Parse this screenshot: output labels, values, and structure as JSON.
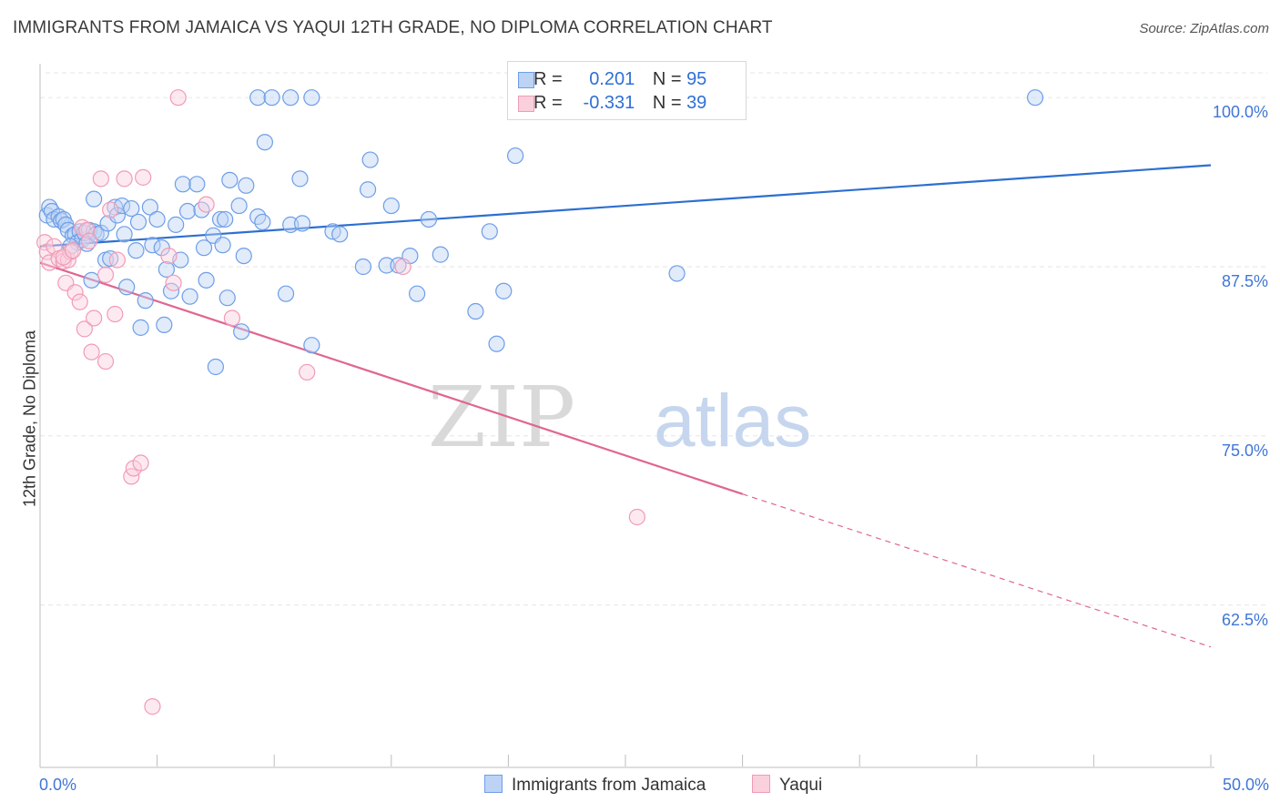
{
  "title": "IMMIGRANTS FROM JAMAICA VS YAQUI 12TH GRADE, NO DIPLOMA CORRELATION CHART",
  "source": "Source: ZipAtlas.com",
  "watermark": {
    "zip": "ZIP",
    "atlas": "atlas"
  },
  "legend": {
    "rows": [
      {
        "r_label": "R =",
        "r_value": "0.201",
        "n_label": "N =",
        "n_value": "95",
        "color": "#6d9ee8",
        "fill": "#bcd3f5"
      },
      {
        "r_label": "R =",
        "r_value": "-0.331",
        "n_label": "N =",
        "n_value": "39",
        "color": "#f19bb6",
        "fill": "#fbd0dd"
      }
    ]
  },
  "bottom_legend": {
    "items": [
      {
        "label": "Immigrants from Jamaica",
        "color": "#6d9ee8",
        "fill": "#bcd3f5"
      },
      {
        "label": "Yaqui",
        "color": "#f19bb6",
        "fill": "#fbd0dd"
      }
    ]
  },
  "axis": {
    "ylabel": "12th Grade, No Diploma",
    "x_min_label": "0.0%",
    "x_max_label": "50.0%",
    "y_ticks": [
      {
        "value": 100.0,
        "label": "100.0%"
      },
      {
        "value": 87.5,
        "label": "87.5%"
      },
      {
        "value": 75.0,
        "label": "75.0%"
      },
      {
        "value": 62.5,
        "label": "62.5%"
      }
    ]
  },
  "chart_data": {
    "type": "scatter",
    "x_range": [
      0,
      50
    ],
    "y_range": [
      50.5,
      102.5
    ],
    "grid": true,
    "series": [
      {
        "name": "Immigrants from Jamaica",
        "color": "#2d6fd0",
        "marker_stroke": "#6d9ee8",
        "marker_fill": "#bcd3f5",
        "trend": {
          "x0": 0,
          "y0": 89.0,
          "x1": 50,
          "y1": 95.0
        },
        "points": [
          [
            0.3,
            91.3
          ],
          [
            0.4,
            91.9
          ],
          [
            0.5,
            91.6
          ],
          [
            0.6,
            91.0
          ],
          [
            0.8,
            91.2
          ],
          [
            0.9,
            90.9
          ],
          [
            1.0,
            91.0
          ],
          [
            1.1,
            90.6
          ],
          [
            1.2,
            90.2
          ],
          [
            1.4,
            89.8
          ],
          [
            1.5,
            89.9
          ],
          [
            1.6,
            89.3
          ],
          [
            1.7,
            90.1
          ],
          [
            1.8,
            89.5
          ],
          [
            1.9,
            90.0
          ],
          [
            2.0,
            89.2
          ],
          [
            2.1,
            90.2
          ],
          [
            2.2,
            86.5
          ],
          [
            2.3,
            90.1
          ],
          [
            2.4,
            89.9
          ],
          [
            2.3,
            92.5
          ],
          [
            2.6,
            90.0
          ],
          [
            2.8,
            88.0
          ],
          [
            2.9,
            90.7
          ],
          [
            3.0,
            88.1
          ],
          [
            3.2,
            91.9
          ],
          [
            3.3,
            91.3
          ],
          [
            3.5,
            92.0
          ],
          [
            3.6,
            89.9
          ],
          [
            3.7,
            86.0
          ],
          [
            3.9,
            91.8
          ],
          [
            4.1,
            88.7
          ],
          [
            4.2,
            90.8
          ],
          [
            4.3,
            83.0
          ],
          [
            4.5,
            85.0
          ],
          [
            4.7,
            91.9
          ],
          [
            4.8,
            89.1
          ],
          [
            5.0,
            91.0
          ],
          [
            5.2,
            88.9
          ],
          [
            5.3,
            83.2
          ],
          [
            5.4,
            87.3
          ],
          [
            5.6,
            85.7
          ],
          [
            5.8,
            90.6
          ],
          [
            6.0,
            88.0
          ],
          [
            6.1,
            93.6
          ],
          [
            6.3,
            91.6
          ],
          [
            6.4,
            85.3
          ],
          [
            6.7,
            93.6
          ],
          [
            6.9,
            91.7
          ],
          [
            7.0,
            88.9
          ],
          [
            7.1,
            86.5
          ],
          [
            7.4,
            89.8
          ],
          [
            7.5,
            80.1
          ],
          [
            7.7,
            91.0
          ],
          [
            7.8,
            89.1
          ],
          [
            7.9,
            91.0
          ],
          [
            8.0,
            85.2
          ],
          [
            8.1,
            93.9
          ],
          [
            8.5,
            92.0
          ],
          [
            8.6,
            82.7
          ],
          [
            8.7,
            88.3
          ],
          [
            8.8,
            93.5
          ],
          [
            9.3,
            91.2
          ],
          [
            9.5,
            90.8
          ],
          [
            9.6,
            96.7
          ],
          [
            9.3,
            100.0
          ],
          [
            9.9,
            100.0
          ],
          [
            10.5,
            85.5
          ],
          [
            10.7,
            90.6
          ],
          [
            11.2,
            90.7
          ],
          [
            11.1,
            94.0
          ],
          [
            11.6,
            81.7
          ],
          [
            11.6,
            100.0
          ],
          [
            10.7,
            100.0
          ],
          [
            12.5,
            90.1
          ],
          [
            12.8,
            89.9
          ],
          [
            13.8,
            87.5
          ],
          [
            14.0,
            93.2
          ],
          [
            14.1,
            95.4
          ],
          [
            14.8,
            87.6
          ],
          [
            15.0,
            92.0
          ],
          [
            15.3,
            87.6
          ],
          [
            15.8,
            88.3
          ],
          [
            16.1,
            85.5
          ],
          [
            16.6,
            91.0
          ],
          [
            17.1,
            88.4
          ],
          [
            18.6,
            84.2
          ],
          [
            19.2,
            90.1
          ],
          [
            19.5,
            81.8
          ],
          [
            19.8,
            85.7
          ],
          [
            20.3,
            95.7
          ],
          [
            20.3,
            100.0
          ],
          [
            27.2,
            87.0
          ],
          [
            42.5,
            100.0
          ],
          [
            1.3,
            89.0
          ]
        ]
      },
      {
        "name": "Yaqui",
        "color": "#e0668f",
        "marker_stroke": "#f19bb6",
        "marker_fill": "#fbd0dd",
        "trend": {
          "x0": 0,
          "y0": 87.8,
          "x1": 30,
          "y1": 70.7,
          "dash_x1": 50,
          "dash_y1": 59.4
        },
        "points": [
          [
            0.2,
            89.3
          ],
          [
            0.3,
            88.6
          ],
          [
            0.4,
            87.8
          ],
          [
            0.6,
            89.0
          ],
          [
            0.8,
            88.1
          ],
          [
            1.0,
            87.9
          ],
          [
            1.1,
            86.3
          ],
          [
            1.2,
            88.0
          ],
          [
            1.3,
            88.6
          ],
          [
            1.5,
            85.6
          ],
          [
            1.7,
            84.9
          ],
          [
            1.8,
            90.4
          ],
          [
            1.9,
            82.9
          ],
          [
            2.0,
            90.2
          ],
          [
            2.1,
            89.4
          ],
          [
            2.3,
            83.7
          ],
          [
            2.2,
            81.2
          ],
          [
            2.6,
            94.0
          ],
          [
            2.8,
            86.9
          ],
          [
            2.8,
            80.5
          ],
          [
            3.0,
            91.7
          ],
          [
            3.2,
            84.0
          ],
          [
            3.3,
            88.0
          ],
          [
            3.6,
            94.0
          ],
          [
            3.9,
            72.0
          ],
          [
            4.0,
            72.6
          ],
          [
            4.3,
            73.0
          ],
          [
            4.4,
            94.1
          ],
          [
            4.8,
            55.0
          ],
          [
            5.5,
            88.3
          ],
          [
            5.7,
            86.3
          ],
          [
            5.9,
            100.0
          ],
          [
            7.1,
            92.1
          ],
          [
            8.2,
            83.7
          ],
          [
            11.4,
            79.7
          ],
          [
            15.5,
            87.5
          ],
          [
            25.5,
            69.0
          ],
          [
            1.0,
            88.2
          ],
          [
            1.4,
            88.7
          ]
        ]
      }
    ]
  }
}
